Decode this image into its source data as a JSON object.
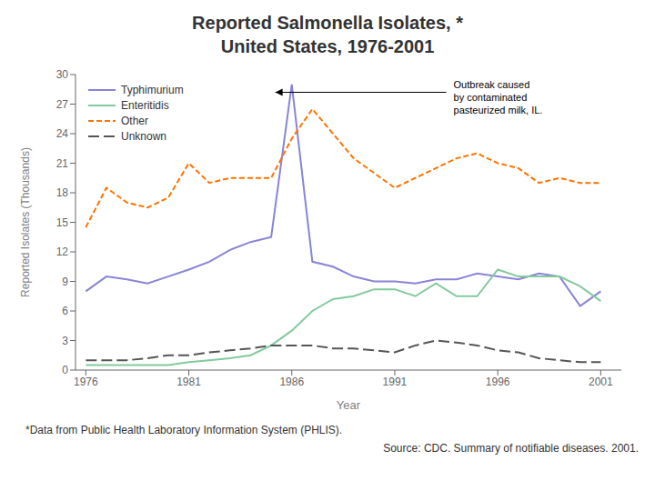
{
  "chart_data": {
    "type": "line",
    "title": "Reported Salmonella Isolates, *\nUnited States, 1976-2001",
    "xlabel": "Year",
    "ylabel": "Reported Isolates (Thousands)",
    "footnote": "*Data from Public Health Laboratory Information System (PHLIS).",
    "source": "Source:  CDC. Summary of notifiable diseases. 2001.",
    "x": [
      1976,
      1977,
      1978,
      1979,
      1980,
      1981,
      1982,
      1983,
      1984,
      1985,
      1986,
      1987,
      1988,
      1989,
      1990,
      1991,
      1992,
      1993,
      1994,
      1995,
      1996,
      1997,
      1998,
      1999,
      2000,
      2001
    ],
    "series": [
      {
        "name": "Typhimurium",
        "color": "#8884d8",
        "line_style": "solid",
        "values": [
          8.0,
          9.5,
          9.2,
          8.8,
          9.5,
          10.2,
          11.0,
          12.2,
          13.0,
          13.5,
          29.0,
          11.0,
          10.5,
          9.5,
          9.0,
          9.0,
          8.8,
          9.2,
          9.2,
          9.8,
          9.5,
          9.2,
          9.8,
          9.5,
          6.5,
          8.0
        ]
      },
      {
        "name": "Enteritidis",
        "color": "#82ca9d",
        "line_style": "solid",
        "values": [
          0.5,
          0.5,
          0.5,
          0.5,
          0.5,
          0.8,
          1.0,
          1.2,
          1.5,
          2.5,
          4.0,
          6.0,
          7.2,
          7.5,
          8.2,
          8.2,
          7.5,
          8.8,
          7.5,
          7.5,
          10.2,
          9.5,
          9.5,
          9.5,
          8.5,
          7.0
        ]
      },
      {
        "name": "Other",
        "color": "#ff7300",
        "line_style": "dashed",
        "values": [
          14.5,
          18.5,
          17.0,
          16.5,
          17.5,
          21.0,
          19.0,
          19.5,
          19.5,
          19.5,
          23.5,
          26.5,
          24.0,
          21.5,
          20.0,
          18.5,
          19.5,
          20.5,
          21.5,
          22.0,
          21.0,
          20.5,
          19.0,
          19.5,
          19.0,
          19.0
        ]
      },
      {
        "name": "Unknown",
        "color": "#555555",
        "line_style": "longdash",
        "values": [
          1.0,
          1.0,
          1.0,
          1.2,
          1.5,
          1.5,
          1.8,
          2.0,
          2.2,
          2.5,
          2.5,
          2.5,
          2.2,
          2.2,
          2.0,
          1.8,
          2.5,
          3.0,
          2.8,
          2.5,
          2.0,
          1.8,
          1.2,
          1.0,
          0.8,
          0.8
        ]
      }
    ],
    "xlim": [
      1975.5,
      2002
    ],
    "xticks": [
      1976,
      1981,
      1986,
      1991,
      1996,
      2001
    ],
    "ylim": [
      0,
      30
    ],
    "yticks": [
      0,
      3,
      6,
      9,
      12,
      15,
      18,
      21,
      24,
      27,
      30
    ],
    "grid": false,
    "legend": "upper left",
    "annotations": [
      {
        "text": "Outbreak caused\nby contaminated\npasteurized milk, IL.",
        "x": 1993.5,
        "y": 29.5,
        "xy": [
          1985.2,
          28.2
        ]
      }
    ]
  }
}
